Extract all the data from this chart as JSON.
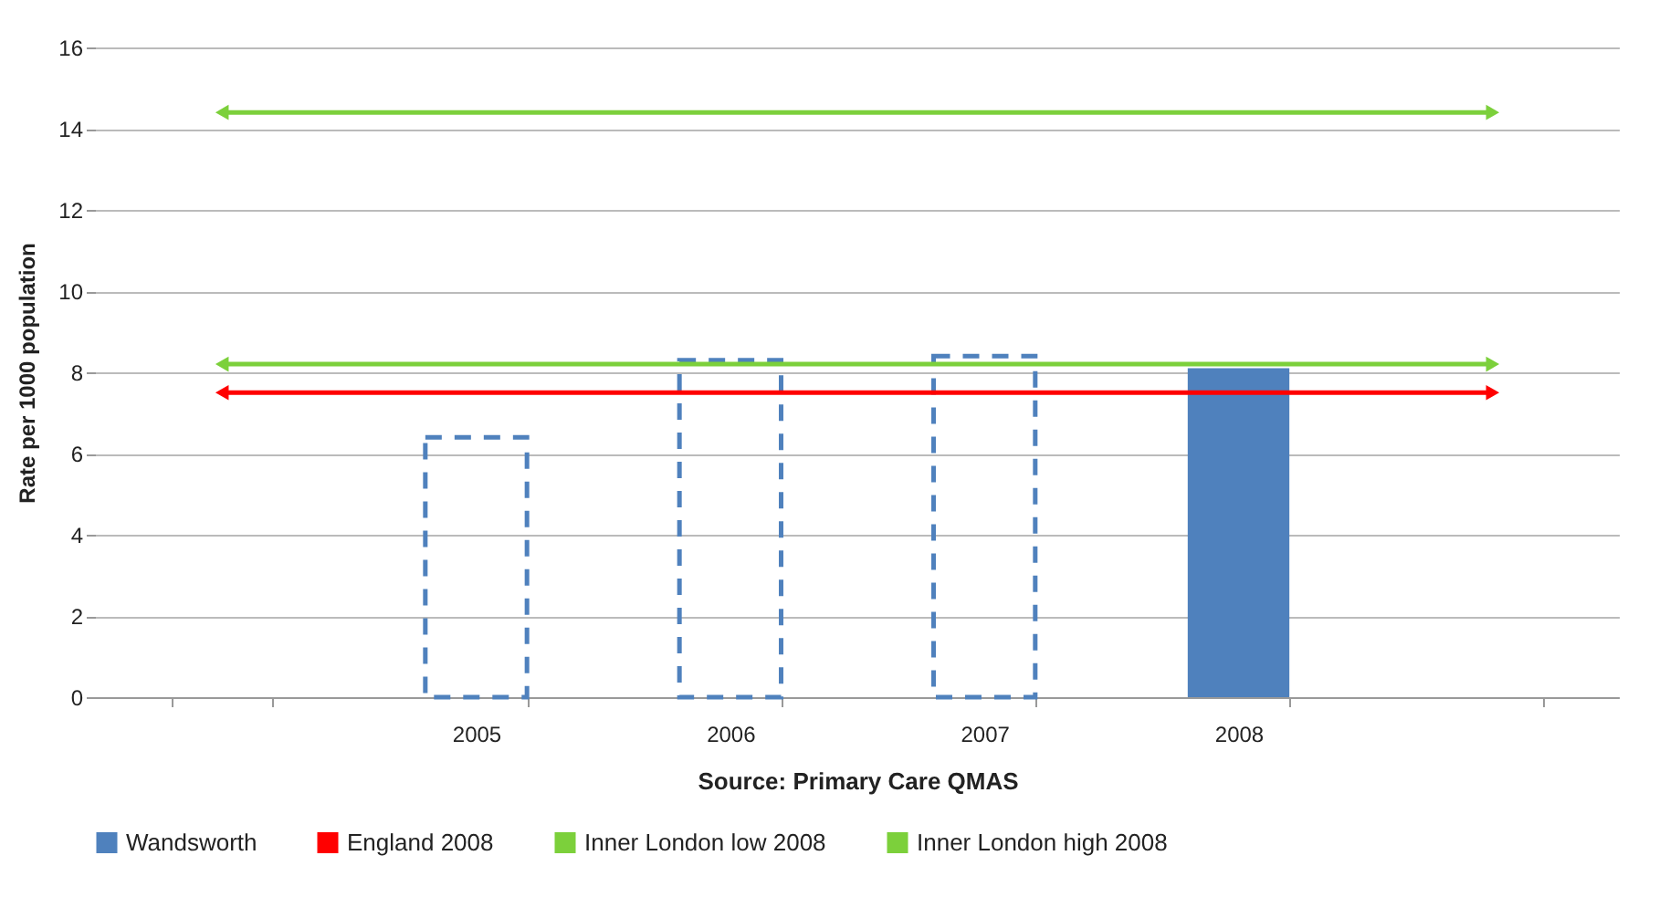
{
  "chart_data": {
    "type": "bar",
    "ylabel": "Rate per 1000 population",
    "categories": [
      null,
      "2005",
      "2006",
      "2007",
      "2008",
      null
    ],
    "series": [
      {
        "name": "Wandsworth",
        "color": "#4f81bd",
        "values": [
          null,
          null,
          null,
          null,
          8.1,
          null
        ]
      },
      {
        "color": "#4f81bd",
        "line_style": "dashed",
        "values": [
          null,
          6.4,
          8.3,
          8.4,
          null,
          null
        ]
      }
    ],
    "ref_lines": [
      {
        "axis": "y",
        "value": 7.5,
        "label": "England 2008",
        "color": "#ff0000"
      },
      {
        "axis": "y",
        "value": 8.2,
        "label": "Inner London low 2008",
        "color": "#7cd03b"
      },
      {
        "axis": "y",
        "value": 14.4,
        "label": "Inner London high 2008",
        "color": "#7cd03b"
      }
    ],
    "ylim": [
      0,
      16
    ],
    "yticks": [
      0,
      2,
      4,
      6,
      8,
      10,
      12,
      14,
      16
    ],
    "annotations": [
      "Source: Primary Care QMAS"
    ],
    "grid": "y",
    "legend": "bottom"
  }
}
